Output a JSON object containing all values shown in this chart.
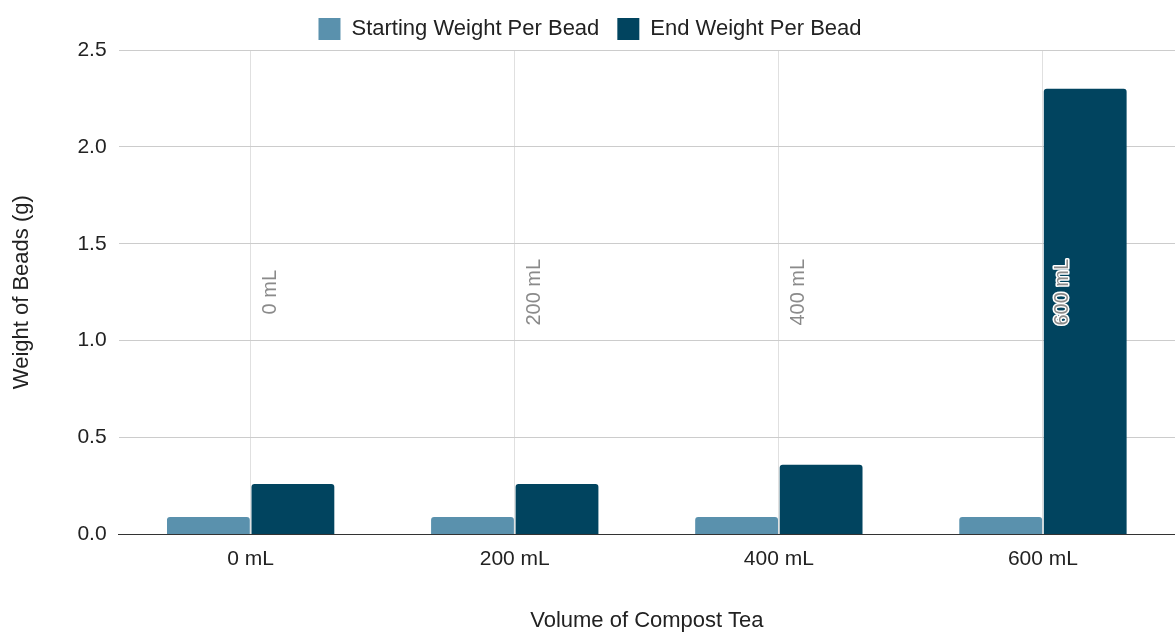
{
  "chart_data": {
    "type": "bar",
    "xlabel": "Volume of Compost Tea",
    "ylabel": "Weight of Beads (g)",
    "categories": [
      "0 mL",
      "200 mL",
      "400 mL",
      "600 mL"
    ],
    "series": [
      {
        "name": "Starting Weight Per Bead",
        "color": "#5a91ad",
        "values": [
          0.09,
          0.09,
          0.09,
          0.09
        ]
      },
      {
        "name": "End Weight Per Bead",
        "color": "#01445f",
        "values": [
          0.26,
          0.26,
          0.36,
          2.3
        ]
      }
    ],
    "ylim": [
      0,
      2.5
    ],
    "yticks": [
      {
        "value": 0,
        "label": "0.0"
      },
      {
        "value": 0.5,
        "label": "0.5"
      },
      {
        "value": 1,
        "label": "1.0"
      },
      {
        "value": 1.5,
        "label": "1.5"
      },
      {
        "value": 2,
        "label": "2.0"
      },
      {
        "value": 2.5,
        "label": "2.5"
      }
    ],
    "annotations": [
      "0 mL",
      "200 mL",
      "400 mL",
      "600 mL"
    ],
    "grid": true,
    "legend": "top"
  }
}
